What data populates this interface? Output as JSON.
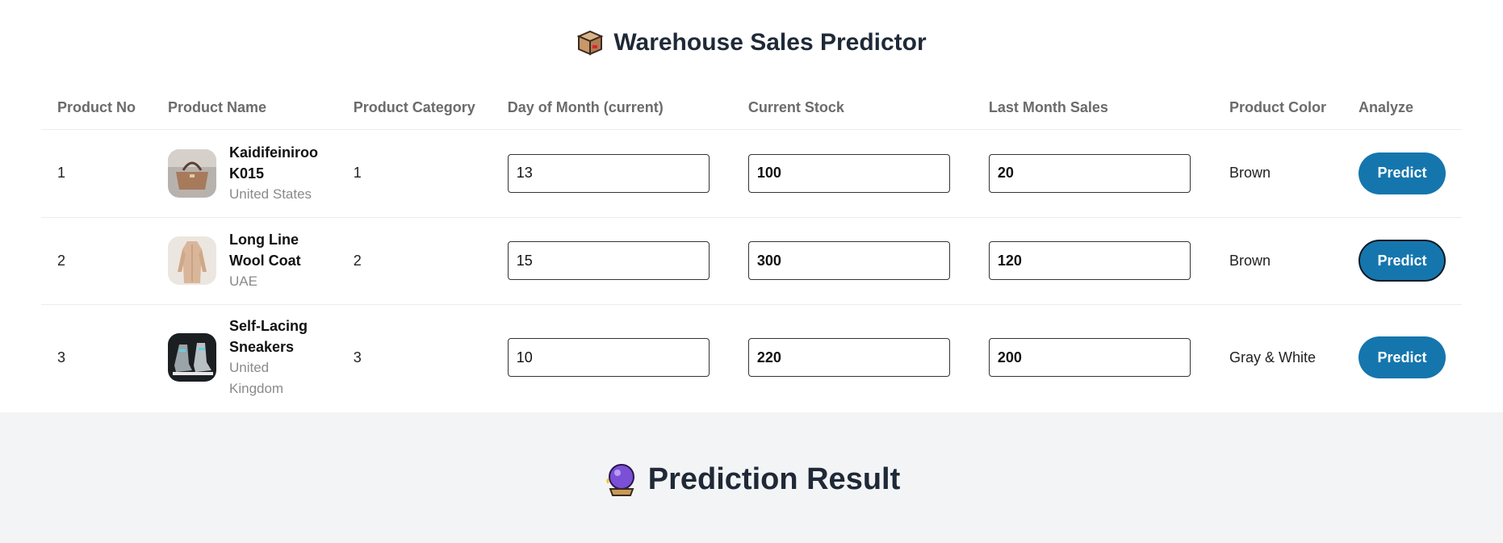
{
  "header": {
    "title": "Warehouse Sales Predictor",
    "icon": "package-box-icon"
  },
  "table": {
    "columns": [
      "Product No",
      "Product Name",
      "Product Category",
      "Day of Month (current)",
      "Current Stock",
      "Last Month Sales",
      "Product Color",
      "Analyze"
    ],
    "rows": [
      {
        "no": "1",
        "name": "Kaidifeiniroo K015",
        "country": "United States",
        "category": "1",
        "day": "13",
        "stock": "100",
        "last_sales": "20",
        "color": "Brown",
        "action": "Predict",
        "thumb": "handbag-icon"
      },
      {
        "no": "2",
        "name": "Long Line Wool Coat",
        "country": "UAE",
        "category": "2",
        "day": "15",
        "stock": "300",
        "last_sales": "120",
        "color": "Brown",
        "action": "Predict",
        "thumb": "coat-icon"
      },
      {
        "no": "3",
        "name": "Self-Lacing Sneakers",
        "country": "United Kingdom",
        "category": "3",
        "day": "10",
        "stock": "220",
        "last_sales": "200",
        "color": "Gray & White",
        "action": "Predict",
        "thumb": "sneakers-icon"
      }
    ]
  },
  "result": {
    "title": "Prediction Result",
    "icon": "crystal-ball-icon"
  },
  "colors": {
    "accent": "#1576ad",
    "title": "#1f2937",
    "lower_bg": "#f3f4f6"
  }
}
